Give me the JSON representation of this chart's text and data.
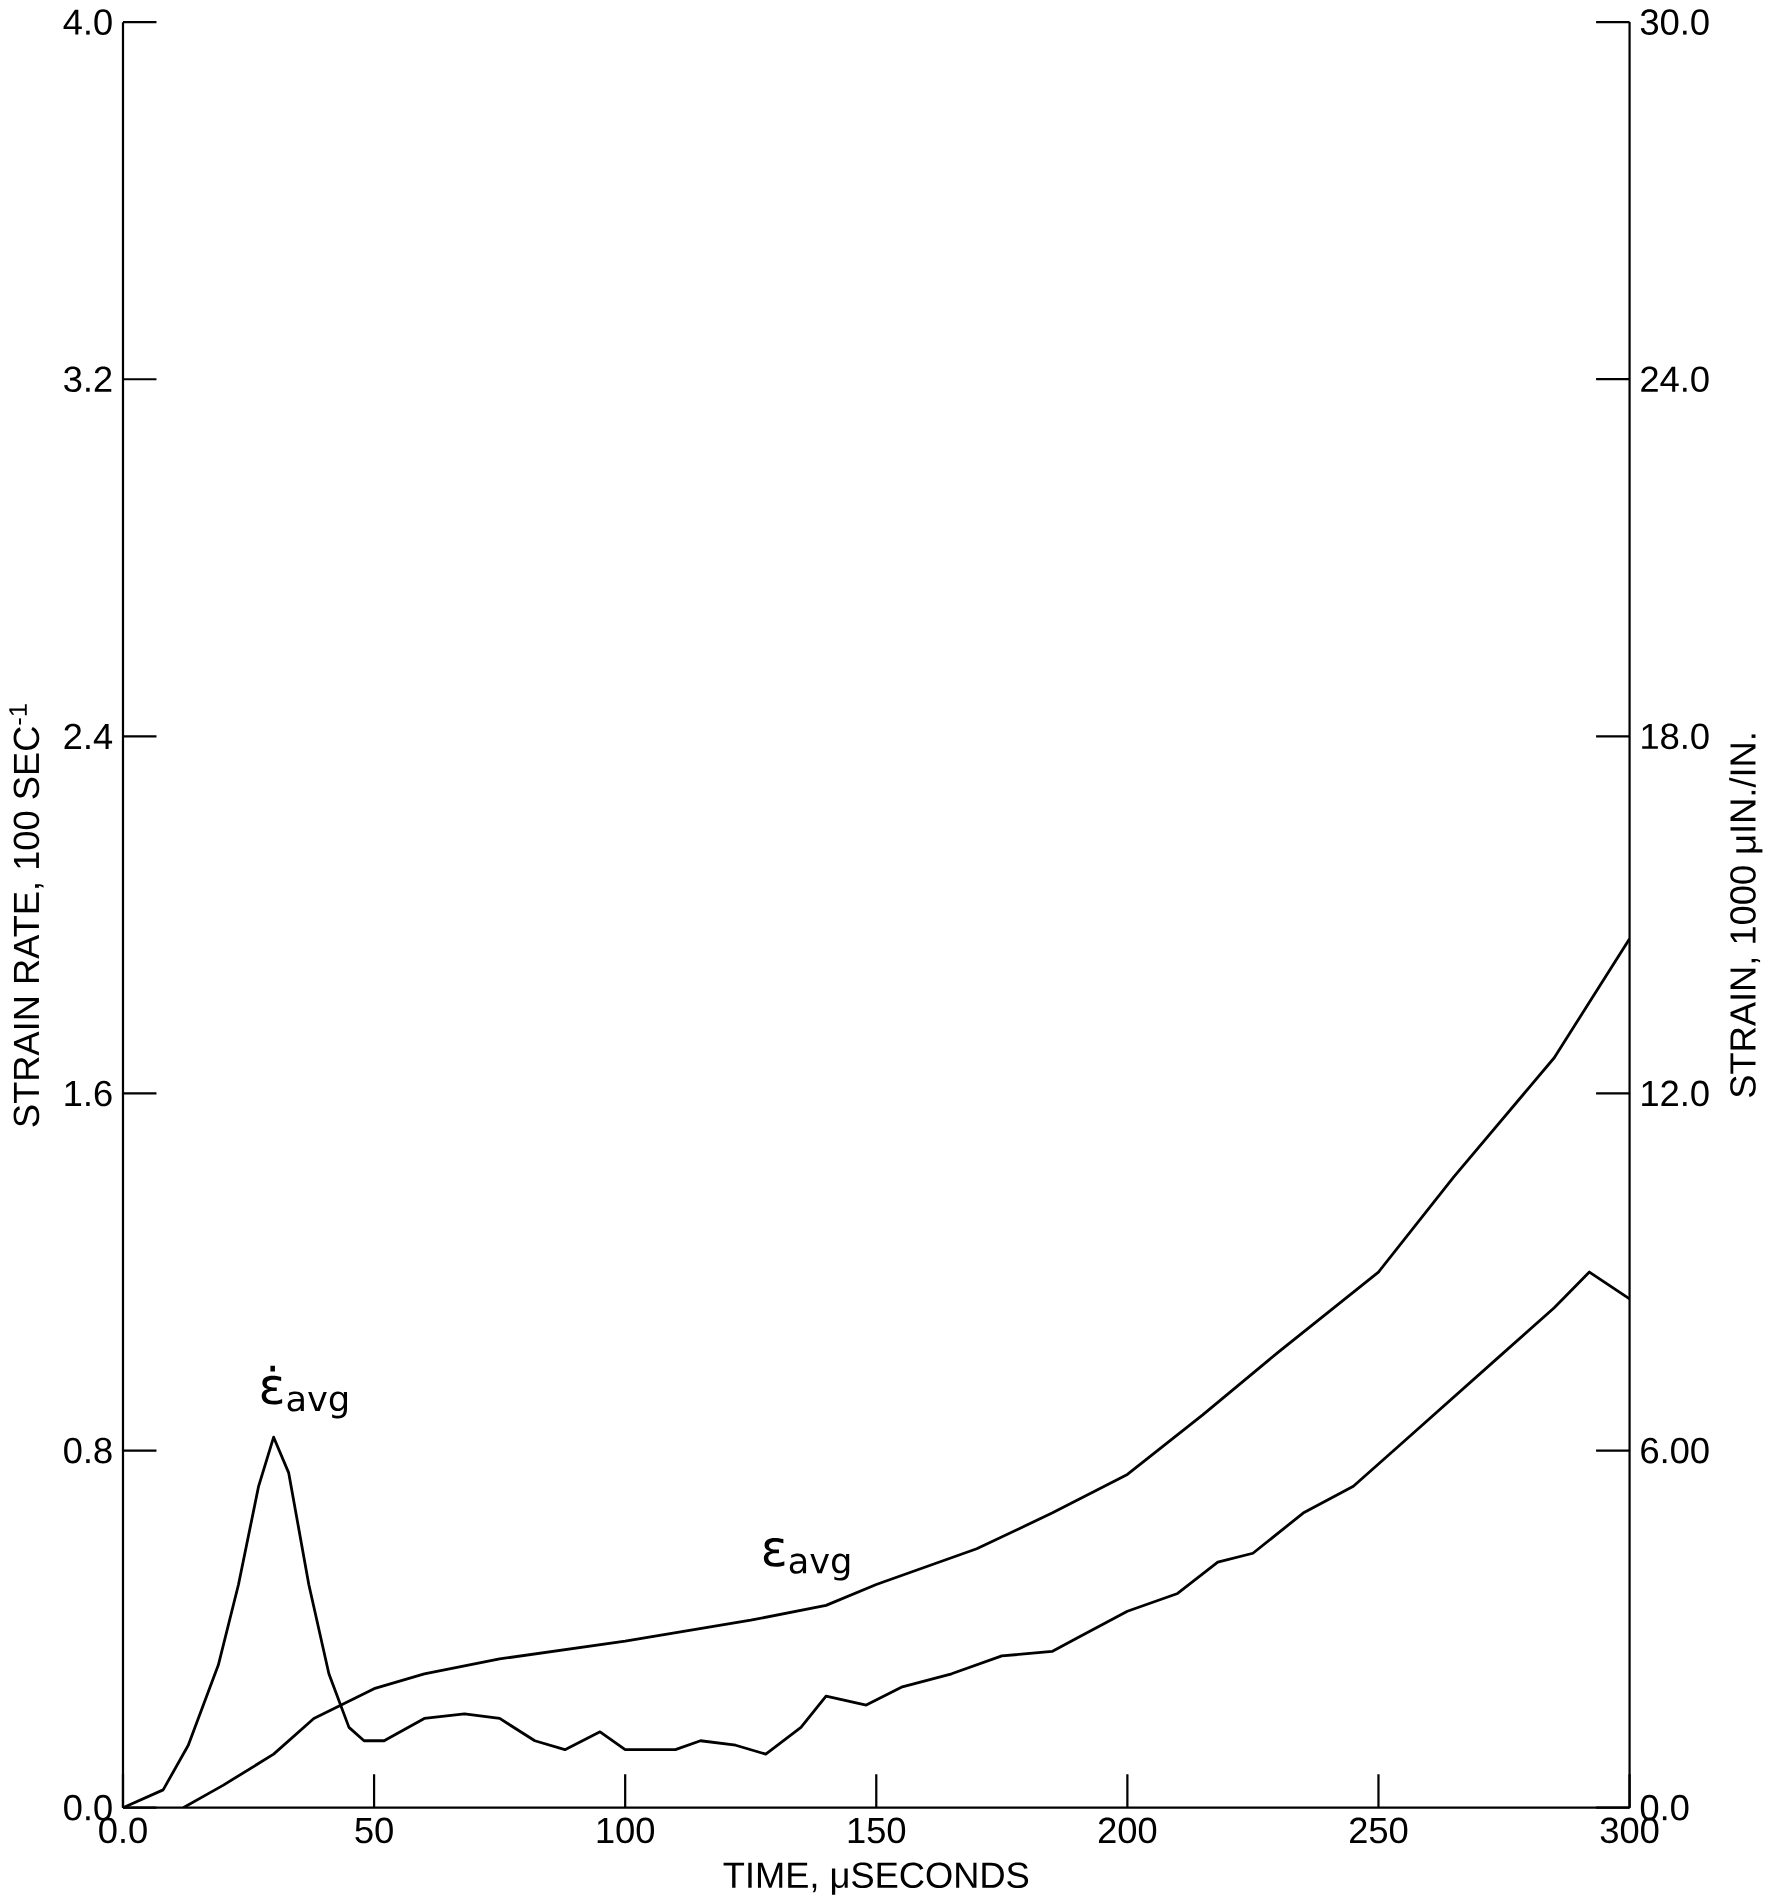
{
  "chart_data": {
    "type": "line",
    "xlabel": "TIME,   μSECONDS",
    "ylabel": "STRAIN RATE,   100 SEC$^{-1}$",
    "y2label": "STRAIN,   1000 μIN./IN.",
    "xlim": [
      0,
      300
    ],
    "xticks": [
      {
        "value": 0,
        "label": "0.0"
      },
      50,
      100,
      150,
      200,
      250,
      300
    ],
    "ylim": [
      0,
      4.0
    ],
    "yticks": [
      {
        "value": 0,
        "label": "0.0"
      },
      {
        "value": 0.8,
        "label": "0.8"
      },
      {
        "value": 1.6,
        "label": "1.6"
      },
      {
        "value": 2.4,
        "label": "2.4"
      },
      {
        "value": 3.2,
        "label": "3.2"
      },
      {
        "value": 4.0,
        "label": "4.0"
      }
    ],
    "y2lim": [
      0,
      30.0
    ],
    "y2ticks": [
      {
        "value": 0,
        "label": "0.0"
      },
      {
        "value": 6,
        "label": "6.00"
      },
      {
        "value": 12,
        "label": "12.0"
      },
      {
        "value": 18,
        "label": "18.0"
      },
      {
        "value": 24,
        "label": "24.0"
      },
      {
        "value": 30,
        "label": "30.0"
      }
    ],
    "marker": "none",
    "line_style": "solid",
    "series": [
      {
        "name": "ε̇$_{avg}$",
        "color": "#000000",
        "x": [
          0,
          8,
          13,
          19,
          23,
          27,
          30,
          33,
          37,
          41,
          45,
          48,
          52,
          60,
          68,
          75,
          82,
          88,
          95,
          100,
          110,
          115,
          122,
          128,
          135,
          140,
          148,
          155,
          165,
          175,
          185,
          190,
          200,
          210,
          218,
          225,
          235,
          245,
          255,
          265,
          275,
          285,
          292,
          300
        ],
        "values": [
          0,
          0.04,
          0.14,
          0.32,
          0.5,
          0.72,
          0.83,
          0.75,
          0.5,
          0.3,
          0.18,
          0.15,
          0.15,
          0.2,
          0.21,
          0.2,
          0.15,
          0.13,
          0.17,
          0.13,
          0.13,
          0.15,
          0.14,
          0.12,
          0.18,
          0.25,
          0.23,
          0.27,
          0.3,
          0.34,
          0.35,
          0.38,
          0.44,
          0.48,
          0.55,
          0.57,
          0.66,
          0.72,
          0.82,
          0.92,
          1.02,
          1.12,
          1.2,
          1.14
        ]
      },
      {
        "name": "ε$_{avg}$",
        "color": "#000000",
        "axis": "y2",
        "x": [
          12,
          20,
          30,
          38,
          50,
          60,
          75,
          100,
          125,
          140,
          150,
          170,
          185,
          200,
          215,
          230,
          250,
          265,
          285,
          300
        ],
        "values": [
          0,
          0.38,
          0.9,
          1.5,
          2.0,
          2.25,
          2.5,
          2.8,
          3.15,
          3.4,
          3.75,
          4.35,
          4.95,
          5.6,
          6.6,
          7.65,
          9.0,
          10.6,
          12.6,
          14.6
        ]
      }
    ]
  }
}
